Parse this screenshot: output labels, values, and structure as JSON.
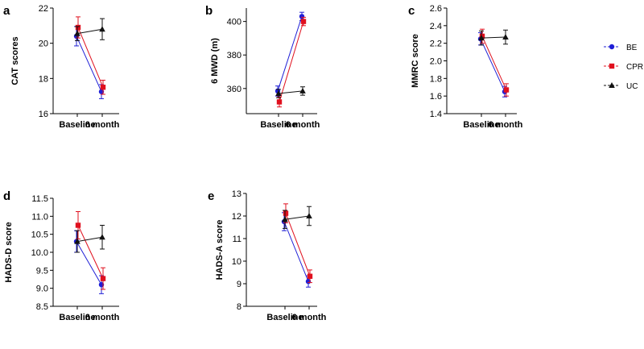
{
  "chart_data": [
    {
      "type": "line",
      "panel": "a",
      "ylabel": "CAT scores",
      "categories": [
        "Baseline",
        "6 month"
      ],
      "ylim": [
        16,
        22
      ],
      "yticks": [
        "16",
        "18",
        "20",
        "22"
      ],
      "series": [
        {
          "name": "BE",
          "values": [
            20.4,
            17.25
          ],
          "errors": [
            0.55,
            0.4
          ]
        },
        {
          "name": "CPR",
          "values": [
            20.9,
            17.5
          ],
          "errors": [
            0.6,
            0.4
          ]
        },
        {
          "name": "UC",
          "values": [
            20.55,
            20.8
          ],
          "errors": [
            0.4,
            0.6
          ]
        }
      ]
    },
    {
      "type": "line",
      "panel": "b",
      "ylabel": "6 MWD (m)",
      "categories": [
        "Baseline",
        "6 month"
      ],
      "ylim": [
        345,
        408
      ],
      "yticks": [
        "360",
        "380",
        "400"
      ],
      "series": [
        {
          "name": "BE",
          "values": [
            358.5,
            403.0
          ],
          "errors": [
            3.0,
            2.5
          ]
        },
        {
          "name": "CPR",
          "values": [
            352.0,
            400.0
          ],
          "errors": [
            3.0,
            2.5
          ]
        },
        {
          "name": "UC",
          "values": [
            357.0,
            358.5
          ],
          "errors": [
            2.5,
            2.5
          ]
        }
      ]
    },
    {
      "type": "line",
      "panel": "c",
      "ylabel": "MMRC score",
      "categories": [
        "Baseline",
        "6 month"
      ],
      "ylim": [
        1.4,
        2.6
      ],
      "yticks": [
        "1.4",
        "1.6",
        "1.8",
        "2.0",
        "2.2",
        "2.4",
        "2.6"
      ],
      "series": [
        {
          "name": "BE",
          "values": [
            2.25,
            1.65
          ],
          "errors": [
            0.07,
            0.06
          ]
        },
        {
          "name": "CPR",
          "values": [
            2.28,
            1.67
          ],
          "errors": [
            0.08,
            0.07
          ]
        },
        {
          "name": "UC",
          "values": [
            2.26,
            2.27
          ],
          "errors": [
            0.08,
            0.08
          ]
        }
      ]
    },
    {
      "type": "line",
      "panel": "d",
      "ylabel": "HADS-D score",
      "categories": [
        "Baseline",
        "6 month"
      ],
      "ylim": [
        8.5,
        11.5
      ],
      "yticks": [
        "8.5",
        "9.0",
        "9.5",
        "10.0",
        "10.5",
        "11.0",
        "11.5"
      ],
      "series": [
        {
          "name": "BE",
          "values": [
            10.3,
            9.1
          ],
          "errors": [
            0.3,
            0.25
          ]
        },
        {
          "name": "CPR",
          "values": [
            10.75,
            9.27
          ],
          "errors": [
            0.38,
            0.3
          ]
        },
        {
          "name": "UC",
          "values": [
            10.3,
            10.42
          ],
          "errors": [
            0.3,
            0.33
          ]
        }
      ]
    },
    {
      "type": "line",
      "panel": "e",
      "ylabel": "HADS-A score",
      "categories": [
        "Baseline",
        "6 month"
      ],
      "ylim": [
        8,
        13
      ],
      "yticks": [
        "8",
        "9",
        "10",
        "11",
        "12",
        "13"
      ],
      "series": [
        {
          "name": "BE",
          "values": [
            11.75,
            9.1
          ],
          "errors": [
            0.4,
            0.25
          ]
        },
        {
          "name": "CPR",
          "values": [
            12.12,
            9.33
          ],
          "errors": [
            0.42,
            0.28
          ]
        },
        {
          "name": "UC",
          "values": [
            11.85,
            12.0
          ],
          "errors": [
            0.4,
            0.42
          ]
        }
      ]
    }
  ],
  "legend": [
    {
      "name": "BE",
      "color": "#1f1fd6",
      "marker": "circle"
    },
    {
      "name": "CPR",
      "color": "#e0101e",
      "marker": "square"
    },
    {
      "name": "UC",
      "color": "#111111",
      "marker": "triangle"
    }
  ]
}
